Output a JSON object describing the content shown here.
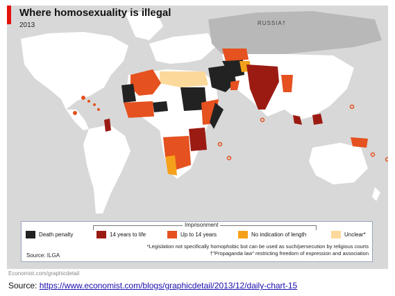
{
  "header": {
    "title": "Where homosexuality is illegal",
    "year": "2013",
    "russia_label": "RUSSIA†"
  },
  "colors": {
    "background": "#d8d8d8",
    "land_default": "#ffffff",
    "death_penalty": "#222222",
    "years_14_to_life": "#9b1b13",
    "up_to_14_years": "#e5511f",
    "no_indication": "#f5a01b",
    "unclear": "#fbd99a",
    "accent_red": "#e3120b"
  },
  "legend": {
    "group_label": "Imprisonment",
    "items": [
      {
        "label": "Death penalty",
        "color": "#222222"
      },
      {
        "label": "14 years to life",
        "color": "#9b1b13"
      },
      {
        "label": "Up to 14 years",
        "color": "#e5511f"
      },
      {
        "label": "No indication of length",
        "color": "#f5a01b"
      },
      {
        "label": "Unclear*",
        "color": "#fbd99a"
      }
    ],
    "note1": "*Legislation not specifically homophobic but can be used as such/persecution by religious courts",
    "note2": "†\"Propaganda law\" restricting freedom of expression and association",
    "source": "Source: ILGA"
  },
  "footer": {
    "site": "Economist.com/graphicdetail",
    "source_prefix": "Source: ",
    "source_url": "https://www.economist.com/blogs/graphicdetail/2013/12/daily-chart-15"
  }
}
